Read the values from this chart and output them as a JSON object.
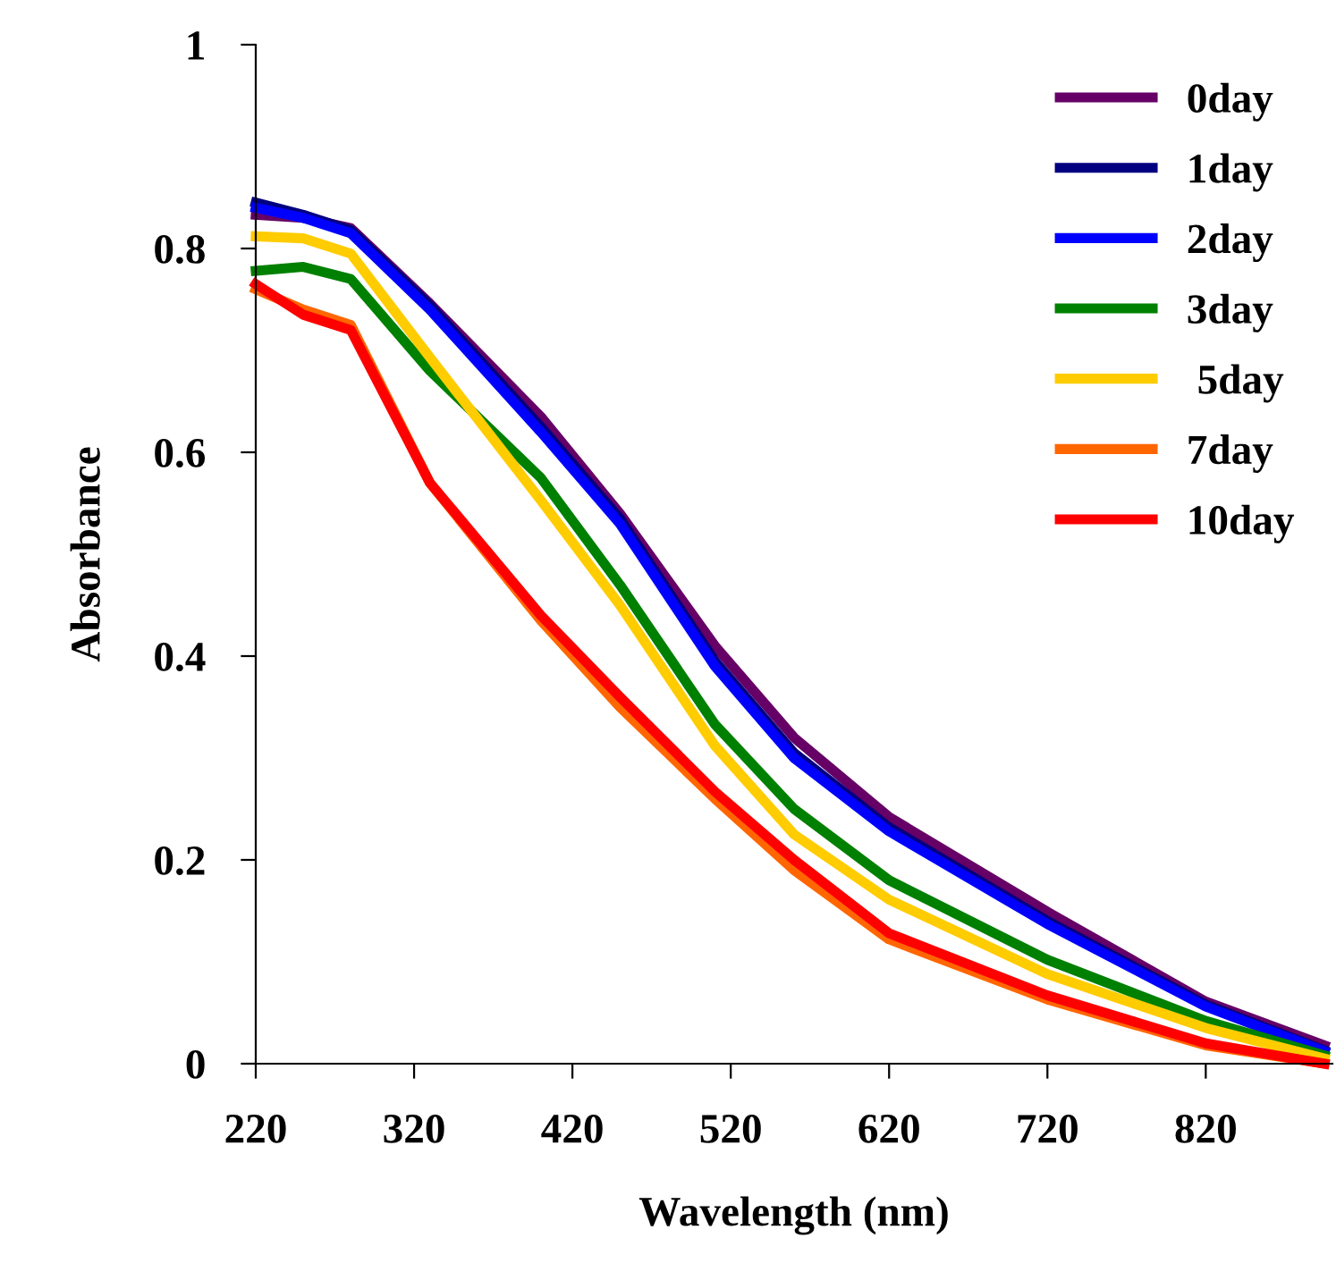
{
  "chart_data": {
    "type": "line",
    "xlabel": "Wavelength (nm)",
    "ylabel": "Absorbance",
    "x": [
      220,
      250,
      280,
      330,
      400,
      450,
      510,
      560,
      620,
      720,
      820,
      895
    ],
    "xlim": [
      220,
      900
    ],
    "xticks": [
      220,
      320,
      420,
      520,
      620,
      720,
      820
    ],
    "ylim": [
      0,
      1
    ],
    "yticks": [
      0,
      0.2,
      0.4,
      0.6,
      0.8,
      1
    ],
    "grid": false,
    "legend": "top right",
    "marker": "none",
    "line_style": "solid",
    "series": [
      {
        "name": "0day",
        "color": "#660066",
        "values": [
          0.833,
          0.83,
          0.82,
          0.746,
          0.635,
          0.54,
          0.41,
          0.32,
          0.242,
          0.149,
          0.061,
          0.018
        ]
      },
      {
        "name": "1day",
        "color": "#000080",
        "values": [
          0.845,
          0.833,
          0.818,
          0.744,
          0.625,
          0.535,
          0.395,
          0.305,
          0.232,
          0.14,
          0.058,
          0.013
        ]
      },
      {
        "name": "2day",
        "color": "#0000ff",
        "values": [
          0.84,
          0.83,
          0.815,
          0.74,
          0.62,
          0.53,
          0.39,
          0.3,
          0.228,
          0.137,
          0.056,
          0.012
        ]
      },
      {
        "name": "3day",
        "color": "#008000",
        "values": [
          0.778,
          0.782,
          0.77,
          0.68,
          0.575,
          0.47,
          0.333,
          0.25,
          0.18,
          0.102,
          0.042,
          0.008
        ]
      },
      {
        "name": " 5day",
        "color": "#ffcc00",
        "values": [
          0.812,
          0.81,
          0.795,
          0.693,
          0.553,
          0.45,
          0.312,
          0.225,
          0.161,
          0.088,
          0.035,
          0.005
        ]
      },
      {
        "name": "7day",
        "color": "#ff6600",
        "values": [
          0.76,
          0.74,
          0.725,
          0.57,
          0.435,
          0.35,
          0.26,
          0.19,
          0.122,
          0.063,
          0.018,
          0.0
        ]
      },
      {
        "name": "10day",
        "color": "#ff0000",
        "values": [
          0.765,
          0.735,
          0.72,
          0.57,
          0.44,
          0.36,
          0.267,
          0.2,
          0.128,
          0.067,
          0.02,
          0.0
        ]
      }
    ]
  }
}
